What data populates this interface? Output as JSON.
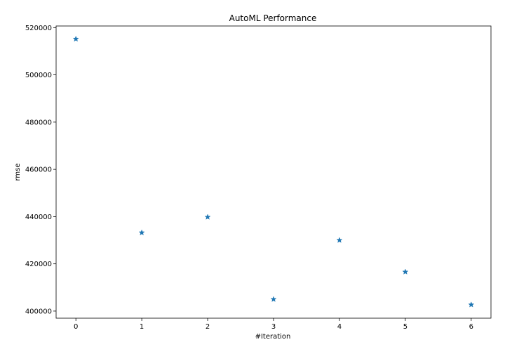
{
  "chart_data": {
    "type": "scatter",
    "title": "AutoML Performance",
    "xlabel": "#Iteration",
    "ylabel": "rmse",
    "marker": "star",
    "color": "#1f77b4",
    "grid": false,
    "legend": false,
    "xlim": [
      -0.3,
      6.3
    ],
    "ylim": [
      397000,
      520700
    ],
    "x_ticks": [
      0,
      1,
      2,
      3,
      4,
      5,
      6
    ],
    "y_ticks": [
      400000,
      420000,
      440000,
      460000,
      480000,
      500000,
      520000
    ],
    "x": [
      0,
      1,
      2,
      3,
      4,
      5,
      6
    ],
    "y": [
      515200,
      433200,
      439800,
      405000,
      430000,
      416600,
      402700
    ]
  }
}
